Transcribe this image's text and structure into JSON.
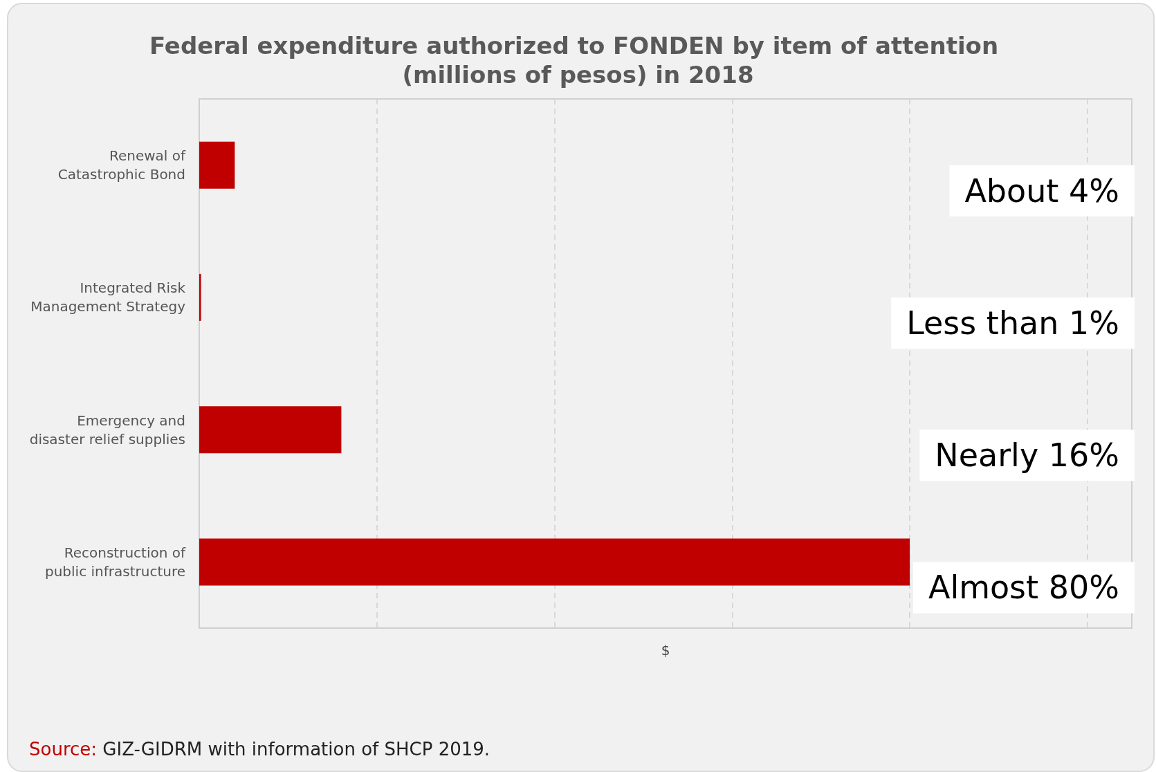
{
  "chart_data": {
    "type": "bar",
    "orientation": "horizontal",
    "xlim": [
      0,
      105
    ],
    "title": "Federal expenditure authorized to FONDEN by item of attention (millions of pesos) in 2018",
    "xlabel": "$",
    "categories": [
      "Renewal of\nCatastrophic Bond",
      "Integrated Risk\nManagement Strategy",
      "Emergency and\ndisaster relief supplies",
      "Reconstruction of\npublic infrastructure"
    ],
    "values": [
      4,
      0.2,
      16,
      80
    ],
    "value_labels": [
      "About 4%",
      "Less than 1%",
      "Nearly 16%",
      "Almost 80%"
    ],
    "color": "#c00000",
    "grid": "x",
    "annotations": [
      "Source: GIZ-GIDRM with information of SHCP 2019."
    ]
  }
}
